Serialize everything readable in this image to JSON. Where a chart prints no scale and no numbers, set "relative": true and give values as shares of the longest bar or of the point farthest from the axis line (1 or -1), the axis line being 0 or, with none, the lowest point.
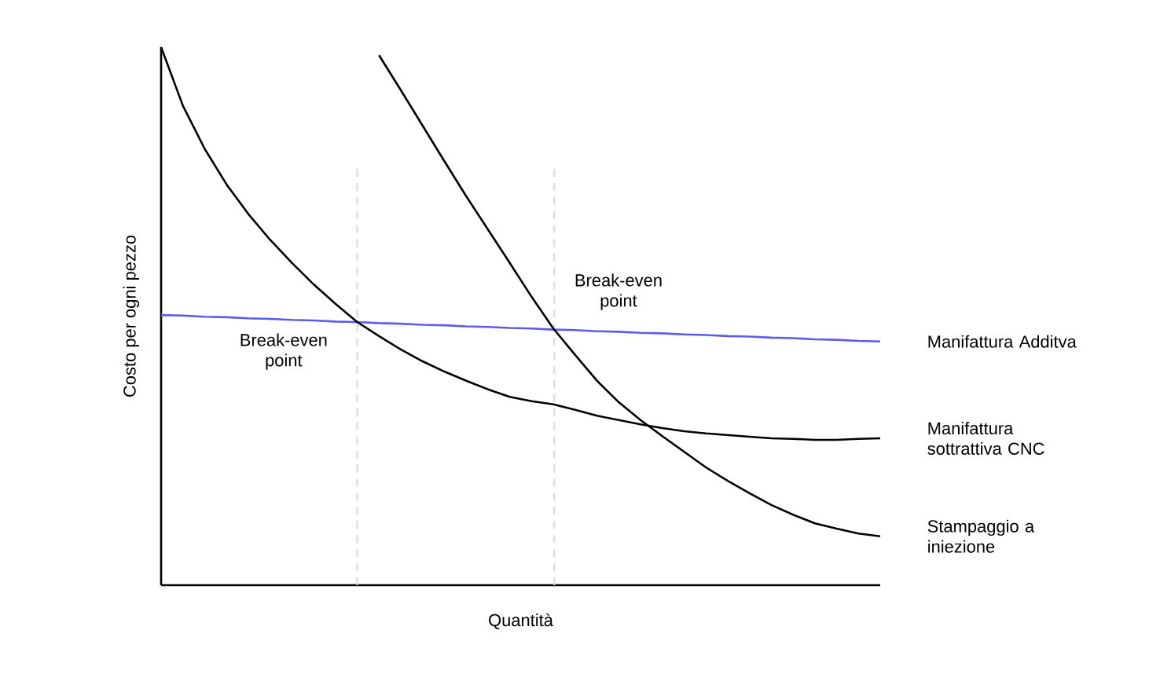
{
  "chart_data": {
    "type": "line",
    "relative": true,
    "xlabel": "Quantità",
    "ylabel": "Costo per ogni pezzo",
    "categories": [
      null,
      null,
      null,
      null,
      null,
      null,
      null,
      null,
      null,
      null,
      null,
      null,
      null,
      null,
      null,
      null,
      null,
      null,
      null,
      null,
      null,
      null,
      null,
      null,
      null,
      null,
      null,
      null,
      null,
      null,
      null,
      null,
      null,
      null
    ],
    "series": [
      {
        "name": "Manifattura Additva",
        "color": "#5b5bf0",
        "values": [
          0.502,
          0.501,
          0.499,
          0.498,
          0.496,
          0.495,
          0.493,
          0.492,
          0.49,
          0.489,
          0.487,
          0.486,
          0.484,
          0.483,
          0.481,
          0.48,
          0.478,
          0.477,
          0.475,
          0.474,
          0.472,
          0.471,
          0.469,
          0.468,
          0.466,
          0.465,
          0.463,
          0.462,
          0.46,
          0.459,
          0.457,
          0.456,
          0.454,
          0.453
        ]
      },
      {
        "name": "Manifattura sottrattiva CNC",
        "color": "#000000",
        "values": [
          1.0,
          0.891,
          0.811,
          0.745,
          0.69,
          0.642,
          0.599,
          0.559,
          0.523,
          0.489,
          0.463,
          0.438,
          0.416,
          0.397,
          0.38,
          0.364,
          0.35,
          0.342,
          0.336,
          0.326,
          0.315,
          0.307,
          0.299,
          0.292,
          0.286,
          0.282,
          0.279,
          0.276,
          0.273,
          0.272,
          0.27,
          0.27,
          0.272,
          0.273
        ]
      },
      {
        "name": "Stampaggio a iniezione",
        "color": "#000000",
        "values": [
          null,
          null,
          null,
          null,
          null,
          null,
          null,
          null,
          null,
          null,
          0.985,
          0.92,
          0.854,
          0.788,
          0.723,
          0.661,
          0.599,
          0.536,
          0.477,
          0.428,
          0.38,
          0.34,
          0.307,
          0.277,
          0.248,
          0.219,
          0.194,
          0.171,
          0.149,
          0.131,
          0.115,
          0.105,
          0.096,
          0.091
        ]
      }
    ],
    "annotations": [
      "Break-even point",
      "Break-even point"
    ]
  }
}
